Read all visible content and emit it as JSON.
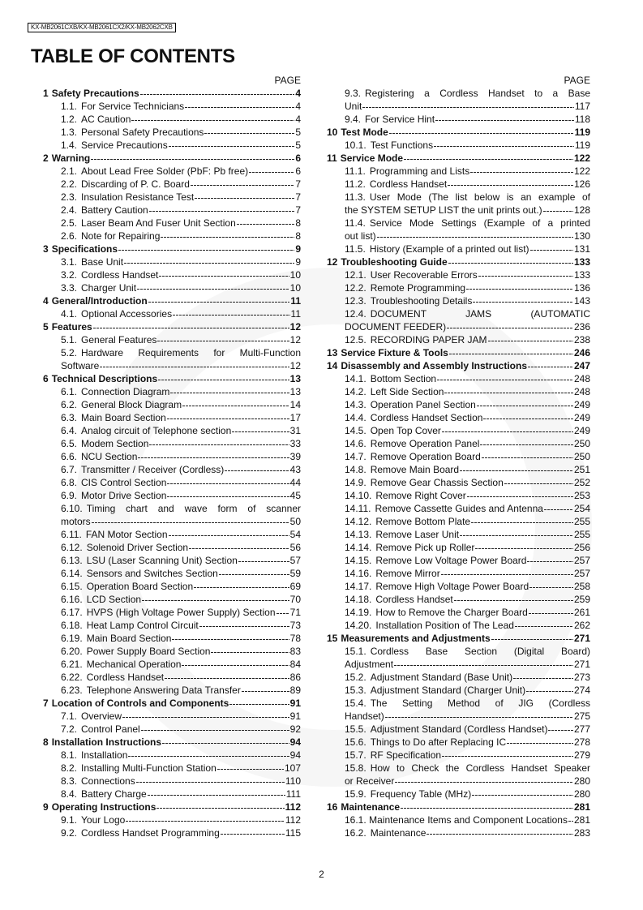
{
  "header": {
    "model": "KX-MB2061CXB/KX-MB2061CX2/KX-MB2062CXB",
    "title": "TABLE OF CONTENTS",
    "page_label": "PAGE"
  },
  "footer": {
    "page_number": "2"
  },
  "left": [
    {
      "level": 0,
      "num": "1",
      "lines": [
        "Safety Precautions"
      ],
      "page": "4"
    },
    {
      "level": 1,
      "num": "1.1.",
      "lines": [
        "For Service Technicians"
      ],
      "page": "4"
    },
    {
      "level": 1,
      "num": "1.2.",
      "lines": [
        "AC Caution"
      ],
      "page": "4"
    },
    {
      "level": 1,
      "num": "1.3.",
      "lines": [
        "Personal Safety Precautions"
      ],
      "page": "5"
    },
    {
      "level": 1,
      "num": "1.4.",
      "lines": [
        "Service Precautions"
      ],
      "page": "5"
    },
    {
      "level": 0,
      "num": "2",
      "lines": [
        "Warning"
      ],
      "page": "6"
    },
    {
      "level": 1,
      "num": "2.1.",
      "lines": [
        "About Lead Free Solder (PbF: Pb free)"
      ],
      "page": "6"
    },
    {
      "level": 1,
      "num": "2.2.",
      "lines": [
        "Discarding of P. C. Board"
      ],
      "page": "7"
    },
    {
      "level": 1,
      "num": "2.3.",
      "lines": [
        "Insulation Resistance Test"
      ],
      "page": "7"
    },
    {
      "level": 1,
      "num": "2.4.",
      "lines": [
        "Battery Caution"
      ],
      "page": "7"
    },
    {
      "level": 1,
      "num": "2.5.",
      "lines": [
        "Laser Beam And Fuser Unit Section"
      ],
      "page": "8"
    },
    {
      "level": 1,
      "num": "2.6.",
      "lines": [
        "Note for Repairing"
      ],
      "page": "8"
    },
    {
      "level": 0,
      "num": "3",
      "lines": [
        "Specifications"
      ],
      "page": "9"
    },
    {
      "level": 1,
      "num": "3.1.",
      "lines": [
        "Base Unit"
      ],
      "page": "9"
    },
    {
      "level": 1,
      "num": "3.2.",
      "lines": [
        "Cordless Handset"
      ],
      "page": "10"
    },
    {
      "level": 1,
      "num": "3.3.",
      "lines": [
        "Charger Unit"
      ],
      "page": "10"
    },
    {
      "level": 0,
      "num": "4",
      "lines": [
        "General/Introduction"
      ],
      "page": "11"
    },
    {
      "level": 1,
      "num": "4.1.",
      "lines": [
        "Optional Accessories"
      ],
      "page": "11"
    },
    {
      "level": 0,
      "num": "5",
      "lines": [
        "Features"
      ],
      "page": "12"
    },
    {
      "level": 1,
      "num": "5.1.",
      "lines": [
        "General Features"
      ],
      "page": "12"
    },
    {
      "level": 1,
      "num": "5.2.",
      "lines": [
        "Hardware Requirements for Multi-Function",
        "Software"
      ],
      "page": "12"
    },
    {
      "level": 0,
      "num": "6",
      "lines": [
        "Technical Descriptions"
      ],
      "page": "13"
    },
    {
      "level": 1,
      "num": "6.1.",
      "lines": [
        "Connection Diagram"
      ],
      "page": "13"
    },
    {
      "level": 1,
      "num": "6.2.",
      "lines": [
        "General Block Diagram"
      ],
      "page": "14"
    },
    {
      "level": 1,
      "num": "6.3.",
      "lines": [
        "Main Board Section"
      ],
      "page": "17"
    },
    {
      "level": 1,
      "num": "6.4.",
      "lines": [
        "Analog circuit of Telephone section"
      ],
      "page": "31"
    },
    {
      "level": 1,
      "num": "6.5.",
      "lines": [
        "Modem Section"
      ],
      "page": "33"
    },
    {
      "level": 1,
      "num": "6.6.",
      "lines": [
        "NCU Section"
      ],
      "page": "39"
    },
    {
      "level": 1,
      "num": "6.7.",
      "lines": [
        "Transmitter / Receiver (Cordless)"
      ],
      "page": "43"
    },
    {
      "level": 1,
      "num": "6.8.",
      "lines": [
        "CIS Control Section"
      ],
      "page": "44"
    },
    {
      "level": 1,
      "num": "6.9.",
      "lines": [
        "Motor Drive Section"
      ],
      "page": "45"
    },
    {
      "level": 1,
      "num": "6.10.",
      "lines": [
        "Timing chart and wave form of scanner",
        "motors"
      ],
      "page": "50"
    },
    {
      "level": 1,
      "num": "6.11.",
      "lines": [
        "FAN Motor Section"
      ],
      "page": "54"
    },
    {
      "level": 1,
      "num": "6.12.",
      "lines": [
        "Solenoid Driver Section"
      ],
      "page": "56"
    },
    {
      "level": 1,
      "num": "6.13.",
      "lines": [
        "LSU (Laser Scanning Unit) Section"
      ],
      "page": "57"
    },
    {
      "level": 1,
      "num": "6.14.",
      "lines": [
        "Sensors and Switches Section"
      ],
      "page": "59"
    },
    {
      "level": 1,
      "num": "6.15.",
      "lines": [
        "Operation Board Section"
      ],
      "page": "69"
    },
    {
      "level": 1,
      "num": "6.16.",
      "lines": [
        "LCD Section"
      ],
      "page": "70"
    },
    {
      "level": 1,
      "num": "6.17.",
      "lines": [
        "HVPS (High Voltage Power Supply) Section"
      ],
      "page": "71"
    },
    {
      "level": 1,
      "num": "6.18.",
      "lines": [
        "Heat Lamp Control Circuit"
      ],
      "page": "73"
    },
    {
      "level": 1,
      "num": "6.19.",
      "lines": [
        "Main Board Section"
      ],
      "page": "78"
    },
    {
      "level": 1,
      "num": "6.20.",
      "lines": [
        "Power Supply Board Section"
      ],
      "page": "83"
    },
    {
      "level": 1,
      "num": "6.21.",
      "lines": [
        "Mechanical Operation"
      ],
      "page": "84"
    },
    {
      "level": 1,
      "num": "6.22.",
      "lines": [
        "Cordless Handset"
      ],
      "page": "86"
    },
    {
      "level": 1,
      "num": "6.23.",
      "lines": [
        "Telephone Answering Data Transfer"
      ],
      "page": "89"
    },
    {
      "level": 0,
      "num": "7",
      "lines": [
        "Location of Controls and Components"
      ],
      "page": "91"
    },
    {
      "level": 1,
      "num": "7.1.",
      "lines": [
        "Overview"
      ],
      "page": "91"
    },
    {
      "level": 1,
      "num": "7.2.",
      "lines": [
        "Control Panel"
      ],
      "page": "92"
    },
    {
      "level": 0,
      "num": "8",
      "lines": [
        "Installation Instructions"
      ],
      "page": "94"
    },
    {
      "level": 1,
      "num": "8.1.",
      "lines": [
        "Installation"
      ],
      "page": "94"
    },
    {
      "level": 1,
      "num": "8.2.",
      "lines": [
        "Installing Multi-Function Station"
      ],
      "page": "107"
    },
    {
      "level": 1,
      "num": "8.3.",
      "lines": [
        "Connections"
      ],
      "page": "110"
    },
    {
      "level": 1,
      "num": "8.4.",
      "lines": [
        "Battery Charge"
      ],
      "page": "111"
    },
    {
      "level": 0,
      "num": "9",
      "lines": [
        "Operating Instructions"
      ],
      "page": "112"
    },
    {
      "level": 1,
      "num": "9.1.",
      "lines": [
        "Your Logo"
      ],
      "page": "112"
    },
    {
      "level": 1,
      "num": "9.2.",
      "lines": [
        "Cordless Handset Programming"
      ],
      "page": "115"
    }
  ],
  "right": [
    {
      "level": 1,
      "num": "9.3.",
      "lines": [
        "Registering a Cordless Handset to a Base",
        "Unit"
      ],
      "page": "117"
    },
    {
      "level": 1,
      "num": "9.4.",
      "lines": [
        "For Service Hint"
      ],
      "page": "118"
    },
    {
      "level": 0,
      "num": "10",
      "lines": [
        "Test Mode"
      ],
      "page": "119"
    },
    {
      "level": 1,
      "num": "10.1.",
      "lines": [
        "Test Functions"
      ],
      "page": "119"
    },
    {
      "level": 0,
      "num": "11",
      "lines": [
        "Service Mode"
      ],
      "page": "122"
    },
    {
      "level": 1,
      "num": "11.1.",
      "lines": [
        "Programming and Lists"
      ],
      "page": "122"
    },
    {
      "level": 1,
      "num": "11.2.",
      "lines": [
        "Cordless Handset"
      ],
      "page": "126"
    },
    {
      "level": 1,
      "num": "11.3.",
      "lines": [
        "User Mode (The list below is an example of",
        "the SYSTEM SETUP LIST the unit prints out.)"
      ],
      "page": "128"
    },
    {
      "level": 1,
      "num": "11.4.",
      "lines": [
        "Service Mode Settings (Example of a printed",
        "out list)"
      ],
      "page": "130"
    },
    {
      "level": 1,
      "num": "11.5.",
      "lines": [
        "History (Example of a printed out list)"
      ],
      "page": "131"
    },
    {
      "level": 0,
      "num": "12",
      "lines": [
        "Troubleshooting Guide"
      ],
      "page": "133"
    },
    {
      "level": 1,
      "num": "12.1.",
      "lines": [
        "User Recoverable Errors"
      ],
      "page": "133"
    },
    {
      "level": 1,
      "num": "12.2.",
      "lines": [
        "Remote Programming"
      ],
      "page": "136"
    },
    {
      "level": 1,
      "num": "12.3.",
      "lines": [
        "Troubleshooting Details"
      ],
      "page": "143"
    },
    {
      "level": 1,
      "num": "12.4.",
      "lines": [
        "DOCUMENT JAMS (AUTOMATIC",
        "DOCUMENT FEEDER)"
      ],
      "page": "236"
    },
    {
      "level": 1,
      "num": "12.5.",
      "lines": [
        "RECORDING PAPER JAM"
      ],
      "page": "238"
    },
    {
      "level": 0,
      "num": "13",
      "lines": [
        "Service Fixture & Tools"
      ],
      "page": "246"
    },
    {
      "level": 0,
      "num": "14",
      "lines": [
        "Disassembly and Assembly Instructions"
      ],
      "page": "247"
    },
    {
      "level": 1,
      "num": "14.1.",
      "lines": [
        "Bottom Section"
      ],
      "page": "248"
    },
    {
      "level": 1,
      "num": "14.2.",
      "lines": [
        "Left Side Section"
      ],
      "page": "248"
    },
    {
      "level": 1,
      "num": "14.3.",
      "lines": [
        "Operation Panel Section"
      ],
      "page": "249"
    },
    {
      "level": 1,
      "num": "14.4.",
      "lines": [
        "Cordless Handset Section"
      ],
      "page": "249"
    },
    {
      "level": 1,
      "num": "14.5.",
      "lines": [
        "Open Top Cover"
      ],
      "page": "249"
    },
    {
      "level": 1,
      "num": "14.6.",
      "lines": [
        "Remove Operation Panel"
      ],
      "page": "250"
    },
    {
      "level": 1,
      "num": "14.7.",
      "lines": [
        "Remove Operation Board"
      ],
      "page": "250"
    },
    {
      "level": 1,
      "num": "14.8.",
      "lines": [
        "Remove Main Board"
      ],
      "page": "251"
    },
    {
      "level": 1,
      "num": "14.9.",
      "lines": [
        "Remove Gear Chassis Section"
      ],
      "page": "252"
    },
    {
      "level": 1,
      "num": "14.10.",
      "lines": [
        "Remove Right Cover"
      ],
      "page": "253"
    },
    {
      "level": 1,
      "num": "14.11.",
      "lines": [
        "Remove Cassette Guides and Antenna"
      ],
      "page": "254"
    },
    {
      "level": 1,
      "num": "14.12.",
      "lines": [
        "Remove Bottom Plate"
      ],
      "page": "255"
    },
    {
      "level": 1,
      "num": "14.13.",
      "lines": [
        "Remove Laser Unit"
      ],
      "page": "255"
    },
    {
      "level": 1,
      "num": "14.14.",
      "lines": [
        "Remove Pick up Roller"
      ],
      "page": "256"
    },
    {
      "level": 1,
      "num": "14.15.",
      "lines": [
        "Remove Low Voltage Power Board"
      ],
      "page": "257"
    },
    {
      "level": 1,
      "num": "14.16.",
      "lines": [
        "Remove Mirror"
      ],
      "page": "257"
    },
    {
      "level": 1,
      "num": "14.17.",
      "lines": [
        "Remove High Voltage Power Board"
      ],
      "page": "258"
    },
    {
      "level": 1,
      "num": "14.18.",
      "lines": [
        "Cordless Handset"
      ],
      "page": "259"
    },
    {
      "level": 1,
      "num": "14.19.",
      "lines": [
        "How to Remove the Charger Board"
      ],
      "page": "261"
    },
    {
      "level": 1,
      "num": "14.20.",
      "lines": [
        "Installation Position of The Lead"
      ],
      "page": "262"
    },
    {
      "level": 0,
      "num": "15",
      "lines": [
        "Measurements and Adjustments"
      ],
      "page": "271"
    },
    {
      "level": 1,
      "num": "15.1.",
      "lines": [
        "Cordless Base Section (Digital Board)",
        "Adjustment"
      ],
      "page": "271"
    },
    {
      "level": 1,
      "num": "15.2.",
      "lines": [
        "Adjustment Standard (Base Unit)"
      ],
      "page": "273"
    },
    {
      "level": 1,
      "num": "15.3.",
      "lines": [
        "Adjustment Standard (Charger Unit)"
      ],
      "page": "274"
    },
    {
      "level": 1,
      "num": "15.4.",
      "lines": [
        "The Setting Method of JIG (Cordless",
        "Handset)"
      ],
      "page": "275"
    },
    {
      "level": 1,
      "num": "15.5.",
      "lines": [
        "Adjustment Standard (Cordless Handset)"
      ],
      "page": "277"
    },
    {
      "level": 1,
      "num": "15.6.",
      "lines": [
        "Things to Do after Replacing IC"
      ],
      "page": "278"
    },
    {
      "level": 1,
      "num": "15.7.",
      "lines": [
        "RF Specification"
      ],
      "page": "279"
    },
    {
      "level": 1,
      "num": "15.8.",
      "lines": [
        "How to Check the Cordless Handset Speaker",
        "or Receiver"
      ],
      "page": "280"
    },
    {
      "level": 1,
      "num": "15.9.",
      "lines": [
        "Frequency Table (MHz)"
      ],
      "page": "280"
    },
    {
      "level": 0,
      "num": "16",
      "lines": [
        "Maintenance"
      ],
      "page": "281"
    },
    {
      "level": 1,
      "num": "16.1.",
      "lines": [
        "Maintenance Items and Component Locations"
      ],
      "page": "281"
    },
    {
      "level": 1,
      "num": "16.2.",
      "lines": [
        "Maintenance"
      ],
      "page": "283"
    }
  ]
}
